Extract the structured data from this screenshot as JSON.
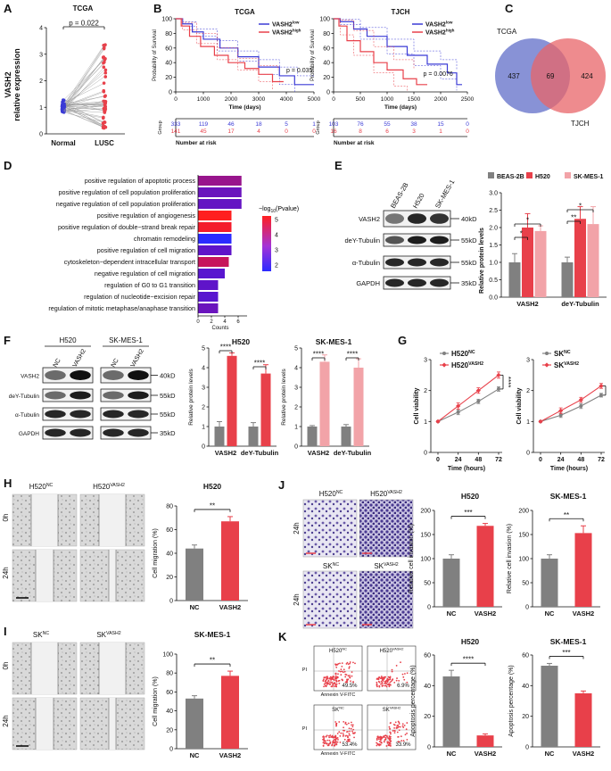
{
  "panels": {
    "A": {
      "letter": "A",
      "title": "TCGA",
      "ylabel_1": "VASH2",
      "ylabel_2": "relative expression",
      "pvalue": "p = 0.022",
      "groups": [
        "Normal",
        "LUSC"
      ],
      "yticks": [
        "0",
        "1",
        "2",
        "3",
        "4"
      ]
    },
    "B": {
      "letter": "B",
      "left": {
        "title": "TCGA",
        "ylabel": "Probability of Survival",
        "xlabel": "Time (days)",
        "pvalue": "p = 0.035",
        "legend_low": "VASH2",
        "legend_low_sup": "low",
        "legend_high": "VASH2",
        "legend_high_sup": "high",
        "xticks": [
          "0",
          "1000",
          "2000",
          "3000",
          "4000",
          "5000"
        ],
        "yticks": [
          "0",
          "20",
          "40",
          "60",
          "80",
          "100"
        ],
        "risk_label": "Group",
        "risk_xlabel": "Number at risk",
        "risk_low": [
          "333",
          "119",
          "46",
          "18",
          "5",
          "1"
        ],
        "risk_high": [
          "141",
          "45",
          "17",
          "4",
          "0",
          "0"
        ]
      },
      "right": {
        "title": "TJCH",
        "ylabel": "Probability of Survival",
        "xlabel": "Time (days)",
        "pvalue": "p = 0.0076",
        "legend_low": "VASH2",
        "legend_low_sup": "low",
        "legend_high": "VASH2",
        "legend_high_sup": "high",
        "xticks": [
          "0",
          "500",
          "1000",
          "1500",
          "2000",
          "2500"
        ],
        "yticks": [
          "0",
          "20",
          "40",
          "60",
          "80",
          "100"
        ],
        "risk_label": "Group",
        "risk_xlabel": "Number at risk",
        "risk_low": [
          "103",
          "76",
          "55",
          "38",
          "15",
          "0"
        ],
        "risk_high": [
          "16",
          "8",
          "6",
          "3",
          "1",
          "0"
        ]
      }
    },
    "C": {
      "letter": "C",
      "left_label": "TCGA",
      "right_label": "TJCH",
      "left_only": "437",
      "overlap": "69",
      "right_only": "424"
    },
    "D": {
      "letter": "D",
      "legend_title": "−log",
      "legend_sub": "10",
      "legend_title2": "(Pvalue)",
      "legend_ticks": [
        "5",
        "4",
        "3",
        "2"
      ],
      "xlabel": "Counts",
      "xticks": [
        "0",
        "2",
        "4",
        "6"
      ]
    },
    "E": {
      "letter": "E",
      "cell_lines": [
        "BEAS-2B",
        "H520",
        "SK-MES-1"
      ],
      "blot_labels": [
        "VASH2",
        "deY-Tubulin",
        "α-Tubulin",
        "GAPDH"
      ],
      "kd": [
        "40kD",
        "55kD",
        "55kD",
        "35kD"
      ],
      "ylabel": "Relative protein levels",
      "yticks": [
        "0.0",
        "0.5",
        "1.0",
        "1.5",
        "2.0",
        "2.5",
        "3.0"
      ],
      "groups": [
        "VASH2",
        "deY-Tubulin"
      ],
      "stars": [
        "*",
        "*",
        "**",
        "*"
      ]
    },
    "F": {
      "letter": "F",
      "cell_h520": "H520",
      "cell_sk": "SK-MES-1",
      "lane_nc": "NC",
      "lane_vash2": "VASH2",
      "blot_labels": [
        "VASH2",
        "deY-Tubulin",
        "α-Tubulin",
        "GAPDH"
      ],
      "kd": [
        "40kD",
        "55kD",
        "55kD",
        "35kD"
      ],
      "chart_h520_title": "H520",
      "chart_sk_title": "SK-MES-1",
      "ylabel": "Relative protein levels",
      "yticks": [
        "0",
        "1",
        "2",
        "3",
        "4",
        "5"
      ],
      "groups": [
        "VASH2",
        "deY-Tubulin"
      ],
      "stars": "****"
    },
    "G": {
      "letter": "G",
      "ylabel": "Cell viability",
      "xlabel": "Time (hours)",
      "xticks": [
        "0",
        "24",
        "48",
        "72"
      ],
      "yticks": [
        "0",
        "1",
        "2",
        "3"
      ],
      "left_nc": "H520",
      "left_nc_sup": "NC",
      "left_v": "H520",
      "left_v_sup": "VASH2",
      "right_nc": "SK",
      "right_nc_sup": "NC",
      "right_v": "SK",
      "right_v_sup": "VASH2",
      "stars_left": "****",
      "stars_right": "***"
    },
    "H": {
      "letter": "H",
      "col_nc": "H520",
      "col_nc_sup": "NC",
      "col_v": "H520",
      "col_v_sup": "VASH2",
      "row_0": "0h",
      "row_24": "24h",
      "chart_title": "H520",
      "ylabel": "Cell migration (%)",
      "yticks": [
        "0",
        "20",
        "40",
        "60",
        "80"
      ],
      "groups": [
        "NC",
        "VASH2"
      ],
      "stars": "**"
    },
    "I": {
      "letter": "I",
      "col_nc": "SK",
      "col_nc_sup": "NC",
      "col_v": "SK",
      "col_v_sup": "VASH2",
      "row_0": "0h",
      "row_24": "24h",
      "chart_title": "SK-MES-1",
      "ylabel": "Cell migration (%)",
      "yticks": [
        "0",
        "20",
        "40",
        "60",
        "80",
        "100"
      ],
      "groups": [
        "NC",
        "VASH2"
      ],
      "stars": "**"
    },
    "J": {
      "letter": "J",
      "img_h520nc": "H520",
      "img_h520nc_sup": "NC",
      "img_h520v": "H520",
      "img_h520v_sup": "VASH2",
      "img_sknc": "SK",
      "img_sknc_sup": "NC",
      "img_skv": "SK",
      "img_skv_sup": "VASH2",
      "row_24": "24h",
      "chart_h520_title": "H520",
      "chart_sk_title": "SK-MES-1",
      "ylabel": "Relative cell invasion (%)",
      "h520_yticks": [
        "0",
        "50",
        "100",
        "150",
        "200"
      ],
      "sk_yticks": [
        "0",
        "50",
        "100",
        "150",
        "200"
      ],
      "groups": [
        "NC",
        "VASH2"
      ],
      "stars_h520": "***",
      "stars_sk": "**"
    },
    "K": {
      "letter": "K",
      "plot_labels": [
        {
          "name": "H520",
          "sup": "NC"
        },
        {
          "name": "H520",
          "sup": "VASH2"
        },
        {
          "name": "SK",
          "sup": "NC"
        },
        {
          "name": "SK",
          "sup": "VASH2"
        }
      ],
      "percents": [
        "49.5%",
        "6.9%",
        "53.4%",
        "33.9%"
      ],
      "pi": "PI",
      "annexin": "Annexin V-FITC",
      "chart_h520_title": "H520",
      "chart_sk_title": "SK-MES-1",
      "ylabel": "Apoptosis percentage (%)",
      "h520_yticks": [
        "0",
        "20",
        "40",
        "60"
      ],
      "sk_yticks": [
        "0",
        "20",
        "40",
        "60"
      ],
      "groups": [
        "NC",
        "VASH2"
      ],
      "stars_h520": "****",
      "stars_sk": "***"
    }
  },
  "go_terms": [
    {
      "term": "positive regulation of apoptotic process",
      "count": 6.5,
      "log10p": 3.4
    },
    {
      "term": "positive regulation of cell population proliferation",
      "count": 6.5,
      "log10p": 2.6
    },
    {
      "term": "negative regulation of cell population proliferation",
      "count": 6.5,
      "log10p": 2.5
    },
    {
      "term": "positive regulation of angiogenesis",
      "count": 5.0,
      "log10p": 5.2
    },
    {
      "term": "positive regulation of double−strand break repair",
      "count": 5.0,
      "log10p": 5.0
    },
    {
      "term": "chromatin remodeling",
      "count": 5.0,
      "log10p": 1.5
    },
    {
      "term": "positive regulation of cell migration",
      "count": 5.0,
      "log10p": 2.4
    },
    {
      "term": "cytoskeleton−dependent intracellular transport",
      "count": 4.6,
      "log10p": 4.2
    },
    {
      "term": "negative regulation of cell migration",
      "count": 4.0,
      "log10p": 2.3
    },
    {
      "term": "regulation of G0 to G1 transition",
      "count": 3.0,
      "log10p": 2.4
    },
    {
      "term": "regulation of nucleotide−excision repair",
      "count": 3.0,
      "log10p": 2.3
    },
    {
      "term": "regulation of mitotic metaphase/anaphase transition",
      "count": 3.0,
      "log10p": 2.6
    }
  ],
  "colors": {
    "grey": "#808080",
    "red": "#e8404a",
    "pink": "#f2a3a8",
    "blue": "#3b3bd6",
    "venn_blue": "#7b86d2",
    "venn_red": "#e86468"
  },
  "chart_data": [
    {
      "type": "bar",
      "id": "E",
      "title": "",
      "categories": [
        "VASH2",
        "deY-Tubulin"
      ],
      "series": [
        {
          "name": "BEAS-2B",
          "values": [
            1.0,
            1.0
          ],
          "err": [
            0.25,
            0.15
          ]
        },
        {
          "name": "H520",
          "values": [
            2.0,
            2.25
          ],
          "err": [
            0.4,
            0.35
          ]
        },
        {
          "name": "SK-MES-1",
          "values": [
            1.9,
            2.1
          ],
          "err": [
            0.15,
            0.5
          ]
        }
      ],
      "ylabel": "Relative protein levels",
      "ylim": [
        0,
        3
      ]
    },
    {
      "type": "bar",
      "id": "F-H520",
      "title": "H520",
      "categories": [
        "VASH2",
        "deY-Tubulin"
      ],
      "series": [
        {
          "name": "NC",
          "values": [
            1.0,
            1.0
          ],
          "err": [
            0.25,
            0.2
          ]
        },
        {
          "name": "VASH2",
          "values": [
            4.6,
            3.7
          ],
          "err": [
            0.15,
            0.45
          ]
        }
      ],
      "ylabel": "Relative protein levels",
      "ylim": [
        0,
        5
      ]
    },
    {
      "type": "bar",
      "id": "F-SK",
      "title": "SK-MES-1",
      "categories": [
        "VASH2",
        "deY-Tubulin"
      ],
      "series": [
        {
          "name": "NC",
          "values": [
            1.0,
            1.0
          ],
          "err": [
            0.05,
            0.1
          ]
        },
        {
          "name": "VASH2",
          "values": [
            4.3,
            4.0
          ],
          "err": [
            0.35,
            0.45
          ]
        }
      ],
      "ylabel": "Relative protein levels",
      "ylim": [
        0,
        5
      ]
    },
    {
      "type": "line",
      "id": "G-H520",
      "x": [
        0,
        24,
        48,
        72
      ],
      "series": [
        {
          "name": "H520 NC",
          "values": [
            1.0,
            1.3,
            1.65,
            2.05
          ],
          "err": [
            0.02,
            0.08,
            0.07,
            0.07
          ]
        },
        {
          "name": "H520 VASH2",
          "values": [
            1.0,
            1.5,
            2.0,
            2.5
          ],
          "err": [
            0.02,
            0.1,
            0.09,
            0.1
          ]
        }
      ],
      "xlabel": "Time (hours)",
      "ylabel": "Cell viability",
      "ylim": [
        0,
        3
      ]
    },
    {
      "type": "line",
      "id": "G-SK",
      "x": [
        0,
        24,
        48,
        72
      ],
      "series": [
        {
          "name": "SK NC",
          "values": [
            1.0,
            1.2,
            1.5,
            1.85
          ],
          "err": [
            0.02,
            0.07,
            0.08,
            0.06
          ]
        },
        {
          "name": "SK VASH2",
          "values": [
            1.0,
            1.35,
            1.7,
            2.15
          ],
          "err": [
            0.02,
            0.09,
            0.08,
            0.08
          ]
        }
      ],
      "xlabel": "Time (hours)",
      "ylabel": "Cell viability",
      "ylim": [
        0,
        3
      ]
    },
    {
      "type": "bar",
      "id": "H",
      "title": "H520",
      "categories": [
        "NC",
        "VASH2"
      ],
      "values": [
        44,
        67
      ],
      "err": [
        3,
        4
      ],
      "ylabel": "Cell migration (%)",
      "ylim": [
        0,
        80
      ]
    },
    {
      "type": "bar",
      "id": "I",
      "title": "SK-MES-1",
      "categories": [
        "NC",
        "VASH2"
      ],
      "values": [
        53,
        77
      ],
      "err": [
        3,
        5
      ],
      "ylabel": "Cell migration (%)",
      "ylim": [
        0,
        100
      ]
    },
    {
      "type": "bar",
      "id": "J-H520",
      "title": "H520",
      "categories": [
        "NC",
        "VASH2"
      ],
      "values": [
        100,
        168
      ],
      "err": [
        8,
        5
      ],
      "ylabel": "Relative cell invasion (%)",
      "ylim": [
        0,
        200
      ]
    },
    {
      "type": "bar",
      "id": "J-SK",
      "title": "SK-MES-1",
      "categories": [
        "NC",
        "VASH2"
      ],
      "values": [
        100,
        153
      ],
      "err": [
        8,
        15
      ],
      "ylabel": "Relative cell invasion (%)",
      "ylim": [
        0,
        200
      ]
    },
    {
      "type": "bar",
      "id": "K-H520",
      "title": "H520",
      "categories": [
        "NC",
        "VASH2"
      ],
      "values": [
        46,
        7.5
      ],
      "err": [
        4,
        1
      ],
      "ylabel": "Apoptosis percentage (%)",
      "ylim": [
        0,
        60
      ]
    },
    {
      "type": "bar",
      "id": "K-SK",
      "title": "SK-MES-1",
      "categories": [
        "NC",
        "VASH2"
      ],
      "values": [
        53,
        35
      ],
      "err": [
        1.5,
        1.5
      ],
      "ylabel": "Apoptosis percentage (%)",
      "ylim": [
        0,
        60
      ]
    }
  ]
}
